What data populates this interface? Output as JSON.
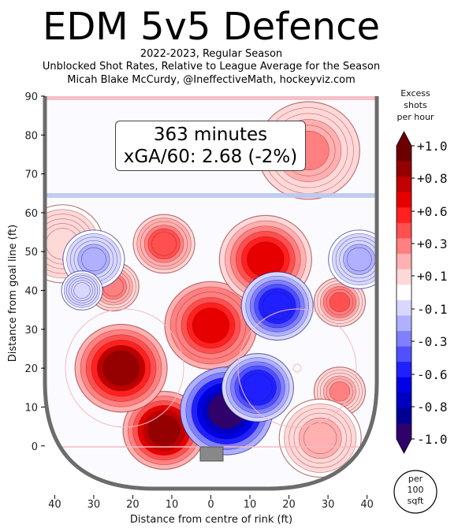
{
  "title": "EDM 5v5 Defence",
  "subtitle_lines": [
    "2022-2023, Regular Season",
    "Unblocked Shot Rates, Relative to League Average for the Season",
    "Micah Blake McCurdy, @IneffectiveMath, hockeyviz.com"
  ],
  "info_box": {
    "minutes": "363 minutes",
    "xga": "xGA/60: 2.68 (-2%)"
  },
  "colorbar": {
    "title_lines": [
      "Excess",
      "shots",
      "per hour"
    ],
    "tick_labels": [
      "+1.0",
      "+0.8",
      "+0.6",
      "+0.3",
      "+0.1",
      "-0.1",
      "-0.3",
      "-0.6",
      "-0.8",
      "-1.0"
    ],
    "colors": [
      "#6b0000",
      "#950000",
      "#c00000",
      "#e60000",
      "#ff2020",
      "#ff5050",
      "#ff8080",
      "#ffb0b0",
      "#ffd8d8",
      "#ffffff",
      "#d8d8ff",
      "#b0b0ff",
      "#8080ff",
      "#5050ff",
      "#2020ff",
      "#0000e6",
      "#0000c0",
      "#000095",
      "#30006b"
    ]
  },
  "unit_badge": [
    "per",
    "100",
    "sqft"
  ],
  "chart_data": {
    "type": "heatmap",
    "title": "EDM 5v5 Defence",
    "xlabel": "Distance from centre of rink (ft)",
    "ylabel": "Distance from goal line (ft)",
    "xlim": [
      42.5,
      -42.5
    ],
    "ylim": [
      -11,
      90
    ],
    "x_ticks": [
      "40",
      "30",
      "20",
      "10",
      "0",
      "10",
      "20",
      "30",
      "40"
    ],
    "x_tick_values": [
      40,
      30,
      20,
      10,
      0,
      -10,
      -20,
      -30,
      -40
    ],
    "y_ticks": [
      "0",
      "10",
      "20",
      "30",
      "40",
      "50",
      "60",
      "70",
      "80",
      "90"
    ],
    "y_tick_values": [
      0,
      10,
      20,
      30,
      40,
      50,
      60,
      70,
      80,
      90
    ],
    "blue_line_y": 64,
    "zlim": [
      -1.0,
      1.0
    ],
    "hotspots": [
      {
        "x": 12,
        "y": 4,
        "value": 0.9,
        "r": 8
      },
      {
        "x": 23,
        "y": 20,
        "value": 0.85,
        "r": 9
      },
      {
        "x": 0,
        "y": 31,
        "value": 0.7,
        "r": 9
      },
      {
        "x": -14,
        "y": 48,
        "value": 0.65,
        "r": 9
      },
      {
        "x": 12,
        "y": 52,
        "value": 0.5,
        "r": 6
      },
      {
        "x": 25,
        "y": 41,
        "value": 0.35,
        "r": 5
      },
      {
        "x": -33,
        "y": 37,
        "value": 0.4,
        "r": 5
      },
      {
        "x": -33,
        "y": 14,
        "value": 0.3,
        "r": 5
      },
      {
        "x": -28,
        "y": 2,
        "value": 0.2,
        "r": 8
      },
      {
        "x": -25,
        "y": 76,
        "value": 0.3,
        "r": 10
      },
      {
        "x": 38,
        "y": 52,
        "value": 0.15,
        "r": 8
      },
      {
        "x": -4,
        "y": 9,
        "value": -0.95,
        "r": 9
      },
      {
        "x": -12,
        "y": 15,
        "value": -0.6,
        "r": 7
      },
      {
        "x": -17,
        "y": 36,
        "value": -0.6,
        "r": 7
      },
      {
        "x": 30,
        "y": 48,
        "value": -0.2,
        "r": 6
      },
      {
        "x": -38,
        "y": 48,
        "value": -0.2,
        "r": 6
      },
      {
        "x": 33,
        "y": 40,
        "value": -0.15,
        "r": 4
      }
    ]
  }
}
